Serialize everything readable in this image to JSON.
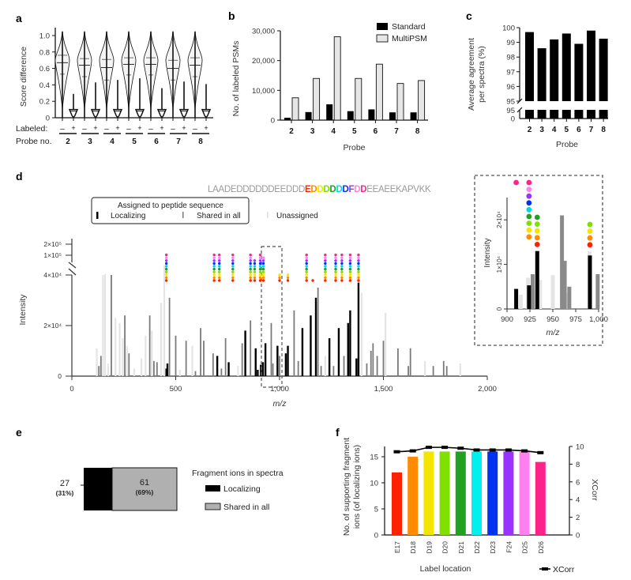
{
  "panel_labels": {
    "a": "a",
    "b": "b",
    "c": "c",
    "d": "d",
    "e": "e",
    "f": "f"
  },
  "chart_data": [
    {
      "id": "a",
      "type": "violin",
      "ylabel": "Score difference",
      "ylim": [
        0,
        1.0
      ],
      "yticks": [
        "0",
        "0.2",
        "0.4",
        "0.6",
        "0.8",
        "1.0"
      ],
      "yticks_values": [
        0,
        0.2,
        0.4,
        0.6,
        0.8,
        1.0
      ],
      "row_labels": {
        "labeled": "Labeled:",
        "probe": "Probe no."
      },
      "labeled_signs": [
        "–",
        "+"
      ],
      "probes": [
        "2",
        "3",
        "4",
        "5",
        "6",
        "7",
        "8"
      ],
      "unlabeled": [
        {
          "probe": "2",
          "median": 0.67,
          "q1": 0.53,
          "q3": 0.76,
          "max": 1.05
        },
        {
          "probe": "3",
          "median": 0.64,
          "q1": 0.5,
          "q3": 0.72,
          "max": 1.05
        },
        {
          "probe": "4",
          "median": 0.61,
          "q1": 0.46,
          "q3": 0.71,
          "max": 1.05
        },
        {
          "probe": "5",
          "median": 0.65,
          "q1": 0.52,
          "q3": 0.73,
          "max": 1.05
        },
        {
          "probe": "6",
          "median": 0.65,
          "q1": 0.52,
          "q3": 0.73,
          "max": 1.05
        },
        {
          "probe": "7",
          "median": 0.6,
          "q1": 0.46,
          "q3": 0.7,
          "max": 1.05
        },
        {
          "probe": "8",
          "median": 0.64,
          "q1": 0.5,
          "q3": 0.73,
          "max": 1.05
        }
      ],
      "labeled": [
        {
          "probe": "2",
          "median": 0.08,
          "max": 0.29
        },
        {
          "probe": "3",
          "median": 0.08,
          "max": 0.43
        },
        {
          "probe": "4",
          "median": 0.08,
          "max": 0.46
        },
        {
          "probe": "5",
          "median": 0.08,
          "max": 0.48
        },
        {
          "probe": "6",
          "median": 0.08,
          "max": 0.36
        },
        {
          "probe": "7",
          "median": 0.08,
          "max": 0.44
        },
        {
          "probe": "8",
          "median": 0.08,
          "max": 0.41
        }
      ]
    },
    {
      "id": "b",
      "type": "bar",
      "xlabel": "Probe",
      "ylabel": "No. of labeled PSMs",
      "ylim": [
        0,
        30000
      ],
      "yticks": [
        "0",
        "10,000",
        "20,000",
        "30,000"
      ],
      "yticks_values": [
        0,
        10000,
        20000,
        30000
      ],
      "categories": [
        "2",
        "3",
        "4",
        "5",
        "6",
        "7",
        "8"
      ],
      "series": [
        {
          "name": "Standard",
          "color": "#000000",
          "values": [
            800,
            2700,
            5300,
            3000,
            3600,
            2600,
            2600
          ]
        },
        {
          "name": "MultiPSM",
          "color": "#e6e6e6",
          "values": [
            7500,
            14000,
            28000,
            14000,
            18800,
            12300,
            13300
          ]
        }
      ],
      "legend": "top-right"
    },
    {
      "id": "c",
      "type": "bar",
      "xlabel": "Probe",
      "ylabel": "Average agreement per spectra (%)",
      "ylim_upper": [
        95,
        100
      ],
      "ylim_lower": [
        0,
        95
      ],
      "yticks": [
        "0",
        "95",
        "95",
        "96",
        "97",
        "98",
        "99",
        "100"
      ],
      "categories": [
        "2",
        "3",
        "4",
        "5",
        "6",
        "7",
        "8"
      ],
      "values": [
        99.7,
        98.6,
        99.2,
        99.6,
        98.9,
        99.8,
        99.25
      ],
      "color": "#000000"
    },
    {
      "id": "d",
      "type": "bar",
      "subtype": "mass-spectrum",
      "xlabel": "m/z",
      "ylabel": "Intensity",
      "xlim": [
        0,
        2000
      ],
      "xticks": [
        "0",
        "500",
        "1,000",
        "1,500",
        "2,000"
      ],
      "yticks": [
        "0",
        "2×10⁴",
        "4×10⁴",
        "1×10⁵",
        "2×10⁵"
      ],
      "peptide": {
        "prefix": "LAADEDDDDDDEEDDD",
        "highlight": [
          {
            "char": "E",
            "color": "#ff2200"
          },
          {
            "char": "D",
            "color": "#ff8c00"
          },
          {
            "char": "D",
            "color": "#f2e600"
          },
          {
            "char": "D",
            "color": "#80e000"
          },
          {
            "char": "D",
            "color": "#22a022"
          },
          {
            "char": "D",
            "color": "#00d8e0"
          },
          {
            "char": "D",
            "color": "#0033ee"
          },
          {
            "char": "F",
            "color": "#9933ff"
          },
          {
            "char": "D",
            "color": "#ff80ee"
          },
          {
            "char": "D",
            "color": "#ff2288"
          }
        ],
        "suffix": "EEAEEKAPVKK"
      },
      "legend": {
        "title": "Assigned to peptide sequence",
        "localizing": "Localizing",
        "shared": "Shared in all",
        "unassigned": "Unassigned"
      },
      "peak_classes": {
        "localizing": "#000000",
        "shared": "#7a7a7a",
        "unassigned": "#e4e4e4"
      },
      "peaks": [
        {
          "mz": 130,
          "i": 4000,
          "c": "shared"
        },
        {
          "mz": 120,
          "i": 11000,
          "c": "unassigned"
        },
        {
          "mz": 140,
          "i": 8000,
          "c": "shared"
        },
        {
          "mz": 150,
          "i": 40000,
          "c": "unassigned"
        },
        {
          "mz": 160,
          "i": 42000,
          "c": "unassigned"
        },
        {
          "mz": 175,
          "i": 5000,
          "c": "unassigned"
        },
        {
          "mz": 190,
          "i": 40000,
          "c": "shared"
        },
        {
          "mz": 210,
          "i": 23000,
          "c": "unassigned"
        },
        {
          "mz": 230,
          "i": 21000,
          "c": "unassigned"
        },
        {
          "mz": 255,
          "i": 24000,
          "c": "shared"
        },
        {
          "mz": 245,
          "i": 15000,
          "c": "unassigned"
        },
        {
          "mz": 275,
          "i": 9000,
          "c": "shared"
        },
        {
          "mz": 265,
          "i": 12000,
          "c": "unassigned"
        },
        {
          "mz": 300,
          "i": 3000,
          "c": "unassigned"
        },
        {
          "mz": 335,
          "i": 7000,
          "c": "unassigned"
        },
        {
          "mz": 355,
          "i": 16000,
          "c": "unassigned"
        },
        {
          "mz": 375,
          "i": 24000,
          "c": "shared"
        },
        {
          "mz": 385,
          "i": 18000,
          "c": "unassigned"
        },
        {
          "mz": 395,
          "i": 6000,
          "c": "shared"
        },
        {
          "mz": 410,
          "i": 5500,
          "c": "shared"
        },
        {
          "mz": 430,
          "i": 29000,
          "c": "unassigned"
        },
        {
          "mz": 445,
          "i": 60000,
          "c": "unassigned"
        },
        {
          "mz": 455,
          "i": 3000,
          "c": "localizing"
        },
        {
          "mz": 460,
          "i": 5000,
          "c": "localizing"
        },
        {
          "mz": 470,
          "i": 31000,
          "c": "shared"
        },
        {
          "mz": 500,
          "i": 16000,
          "c": "shared"
        },
        {
          "mz": 520,
          "i": 2500,
          "c": "unassigned"
        },
        {
          "mz": 550,
          "i": 14000,
          "c": "shared"
        },
        {
          "mz": 580,
          "i": 12000,
          "c": "unassigned"
        },
        {
          "mz": 595,
          "i": 2000,
          "c": "shared"
        },
        {
          "mz": 620,
          "i": 19000,
          "c": "shared"
        },
        {
          "mz": 635,
          "i": 14000,
          "c": "shared"
        },
        {
          "mz": 680,
          "i": 9000,
          "c": "shared"
        },
        {
          "mz": 700,
          "i": 8000,
          "c": "localizing"
        },
        {
          "mz": 720,
          "i": 3000,
          "c": "shared"
        },
        {
          "mz": 740,
          "i": 15000,
          "c": "shared"
        },
        {
          "mz": 755,
          "i": 5500,
          "c": "localizing"
        },
        {
          "mz": 800,
          "i": 4000,
          "c": "unassigned"
        },
        {
          "mz": 820,
          "i": 13000,
          "c": "shared"
        },
        {
          "mz": 835,
          "i": 18000,
          "c": "localizing"
        },
        {
          "mz": 860,
          "i": 22000,
          "c": "shared"
        },
        {
          "mz": 885,
          "i": 11000,
          "c": "localizing"
        },
        {
          "mz": 895,
          "i": 2500,
          "c": "localizing"
        },
        {
          "mz": 910,
          "i": 4500,
          "c": "localizing"
        },
        {
          "mz": 920,
          "i": 5500,
          "c": "localizing"
        },
        {
          "mz": 932,
          "i": 13000,
          "c": "localizing"
        },
        {
          "mz": 960,
          "i": 21000,
          "c": "shared"
        },
        {
          "mz": 968,
          "i": 5000,
          "c": "shared"
        },
        {
          "mz": 990,
          "i": 12000,
          "c": "localizing"
        },
        {
          "mz": 1000,
          "i": 8000,
          "c": "shared"
        },
        {
          "mz": 1030,
          "i": 9000,
          "c": "localizing"
        },
        {
          "mz": 1040,
          "i": 12000,
          "c": "localizing"
        },
        {
          "mz": 1070,
          "i": 26000,
          "c": "shared"
        },
        {
          "mz": 1090,
          "i": 6000,
          "c": "shared"
        },
        {
          "mz": 1110,
          "i": 19000,
          "c": "localizing"
        },
        {
          "mz": 1150,
          "i": 24000,
          "c": "localizing"
        },
        {
          "mz": 1175,
          "i": 31000,
          "c": "localizing"
        },
        {
          "mz": 1185,
          "i": 35000,
          "c": "shared"
        },
        {
          "mz": 1200,
          "i": 4000,
          "c": "shared"
        },
        {
          "mz": 1220,
          "i": 8000,
          "c": "unassigned"
        },
        {
          "mz": 1240,
          "i": 15000,
          "c": "localizing"
        },
        {
          "mz": 1260,
          "i": 4000,
          "c": "shared"
        },
        {
          "mz": 1285,
          "i": 19000,
          "c": "localizing"
        },
        {
          "mz": 1310,
          "i": 8000,
          "c": "shared"
        },
        {
          "mz": 1330,
          "i": 21000,
          "c": "localizing"
        },
        {
          "mz": 1340,
          "i": 26000,
          "c": "localizing"
        },
        {
          "mz": 1370,
          "i": 7000,
          "c": "localizing"
        },
        {
          "mz": 1380,
          "i": 37000,
          "c": "localizing"
        },
        {
          "mz": 1395,
          "i": 33000,
          "c": "unassigned"
        },
        {
          "mz": 1420,
          "i": 5000,
          "c": "shared"
        },
        {
          "mz": 1440,
          "i": 10000,
          "c": "shared"
        },
        {
          "mz": 1450,
          "i": 13000,
          "c": "shared"
        },
        {
          "mz": 1470,
          "i": 8000,
          "c": "shared"
        },
        {
          "mz": 1500,
          "i": 14000,
          "c": "shared"
        },
        {
          "mz": 1510,
          "i": 25000,
          "c": "unassigned"
        },
        {
          "mz": 1570,
          "i": 11000,
          "c": "shared"
        },
        {
          "mz": 1630,
          "i": 11000,
          "c": "shared"
        },
        {
          "mz": 1620,
          "i": 4000,
          "c": "shared"
        },
        {
          "mz": 1700,
          "i": 6000,
          "c": "unassigned"
        },
        {
          "mz": 1740,
          "i": 4000,
          "c": "shared"
        },
        {
          "mz": 1790,
          "i": 6000,
          "c": "shared"
        },
        {
          "mz": 1805,
          "i": 4000,
          "c": "shared"
        },
        {
          "mz": 1870,
          "i": 5000,
          "c": "unassigned"
        }
      ],
      "inset": {
        "xlabel": "m/z",
        "ylabel": "Intensity",
        "xlim": [
          900,
          1000
        ],
        "xticks": [
          "900",
          "925",
          "950",
          "975",
          "1,000"
        ],
        "yticks": [
          "0",
          "1×10⁴",
          "2×10⁴"
        ],
        "peaks": [
          {
            "mz": 910,
            "i": 4500,
            "c": "localizing"
          },
          {
            "mz": 915,
            "i": 3200,
            "c": "unassigned"
          },
          {
            "mz": 923,
            "i": 7000,
            "c": "unassigned"
          },
          {
            "mz": 924,
            "i": 5300,
            "c": "localizing"
          },
          {
            "mz": 928,
            "i": 7800,
            "c": "shared"
          },
          {
            "mz": 933,
            "i": 13000,
            "c": "localizing"
          },
          {
            "mz": 936,
            "i": 6500,
            "c": "unassigned"
          },
          {
            "mz": 950,
            "i": 7600,
            "c": "unassigned"
          },
          {
            "mz": 960,
            "i": 21000,
            "c": "shared"
          },
          {
            "mz": 963,
            "i": 10800,
            "c": "shared"
          },
          {
            "mz": 964,
            "i": 3600,
            "c": "unassigned"
          },
          {
            "mz": 968,
            "i": 5000,
            "c": "shared"
          },
          {
            "mz": 990,
            "i": 13000,
            "c": "unassigned"
          },
          {
            "mz": 990.5,
            "i": 12000,
            "c": "localizing"
          },
          {
            "mz": 999,
            "i": 7800,
            "c": "shared"
          }
        ]
      }
    },
    {
      "id": "e",
      "type": "bar",
      "subtype": "stacked-horizontal",
      "legend_title": "Fragment ions in spectra",
      "segments": [
        {
          "name": "Localizing",
          "value": 27,
          "percent": "(31%)",
          "color": "#000000"
        },
        {
          "name": "Shared in all",
          "value": 61,
          "percent": "(69%)",
          "color": "#b0b0b0"
        }
      ]
    },
    {
      "id": "f",
      "type": "bar",
      "xlabel": "Label location",
      "ylabel": "No. of supporting fragment ions (of localizing ions)",
      "y2label": "XCorr",
      "ylim": [
        0,
        17
      ],
      "y2lim": [
        0,
        10
      ],
      "yticks": [
        "0",
        "5",
        "10",
        "15"
      ],
      "y2ticks": [
        "0",
        "2",
        "4",
        "6",
        "8",
        "10"
      ],
      "categories": [
        "E17",
        "D18",
        "D19",
        "D20",
        "D21",
        "D22",
        "D23",
        "F24",
        "D25",
        "D26"
      ],
      "values": [
        12,
        15,
        16,
        16,
        16,
        16,
        16,
        16,
        16,
        14
      ],
      "colors": [
        "#ff2200",
        "#ff8c00",
        "#f2e600",
        "#80e000",
        "#22a022",
        "#00f0f0",
        "#0033ee",
        "#9933ff",
        "#ff80ee",
        "#ff2288"
      ],
      "line": {
        "name": "XCorr",
        "values": [
          9.4,
          9.5,
          9.9,
          9.9,
          9.8,
          9.6,
          9.6,
          9.6,
          9.5,
          9.3
        ]
      },
      "legend": "bottom-right"
    }
  ]
}
